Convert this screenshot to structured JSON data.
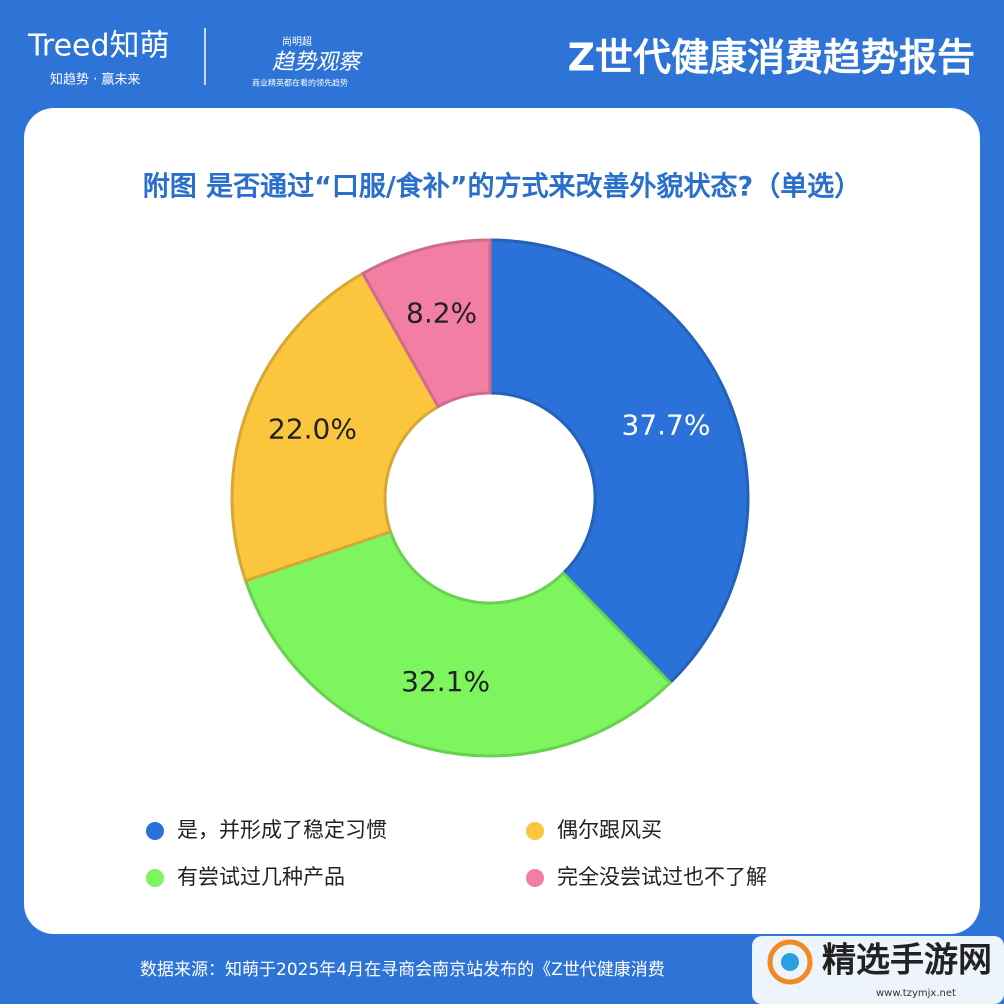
{
  "header": {
    "logo": "Treed知萌",
    "slogan": "知趋势 · 赢未来",
    "brand_small": "尚明超",
    "brand": "趋势观察",
    "brand_tagline": "商业精英都在看的领先趋势",
    "title": "Z世代健康消费趋势报告"
  },
  "chart_data": {
    "type": "donut",
    "title": "附图 是否通过“口服/食补”的方式来改善外貌状态?（单选）",
    "categories": [
      "是，并形成了稳定习惯",
      "有尝试过几种产品",
      "偶尔跟风买",
      "完全没尝试过也不了解"
    ],
    "values": [
      37.7,
      32.1,
      22.0,
      8.2
    ],
    "value_labels": [
      "37.7%",
      "32.1%",
      "22.0%",
      "8.2%"
    ],
    "colors": [
      "#2a72d9",
      "#7cf55f",
      "#fbc53d",
      "#f27fa3"
    ]
  },
  "footer": {
    "source": "数据来源：知萌于2025年4月在寻商会南京站发布的《Z世代健康消费"
  },
  "watermark": {
    "name": "精选手游网",
    "url": "www.tzymjx.net"
  }
}
